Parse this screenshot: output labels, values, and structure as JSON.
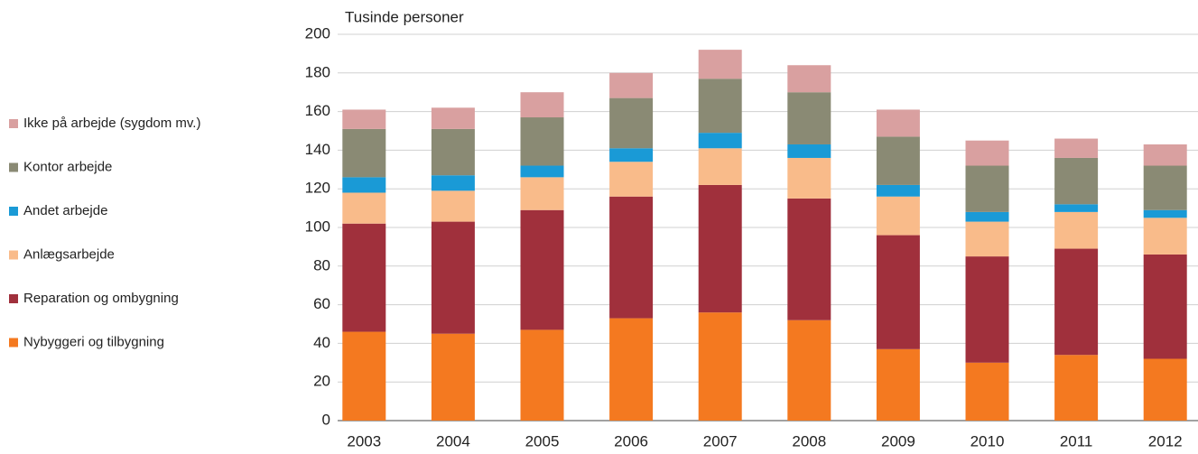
{
  "chart_data": {
    "type": "bar",
    "stacked": true,
    "y_label": "Tusinde personer",
    "categories": [
      "2003",
      "2004",
      "2005",
      "2006",
      "2007",
      "2008",
      "2009",
      "2010",
      "2011",
      "2012"
    ],
    "series": [
      {
        "name": "Nybyggeri og tilbygning",
        "color": "#f47920",
        "values": [
          46,
          45,
          47,
          53,
          56,
          52,
          37,
          30,
          34,
          32
        ]
      },
      {
        "name": "Reparation og ombygning",
        "color": "#a0303c",
        "values": [
          56,
          58,
          62,
          63,
          66,
          63,
          59,
          55,
          55,
          54
        ]
      },
      {
        "name": "Anlægsarbejde",
        "color": "#f9bb8a",
        "values": [
          16,
          16,
          17,
          18,
          19,
          21,
          20,
          18,
          19,
          19
        ]
      },
      {
        "name": "Andet arbejde",
        "color": "#1a9ad6",
        "values": [
          8,
          8,
          6,
          7,
          8,
          7,
          6,
          5,
          4,
          4
        ]
      },
      {
        "name": "Kontor arbejde",
        "color": "#8a8a74",
        "values": [
          25,
          24,
          25,
          26,
          28,
          27,
          25,
          24,
          24,
          23
        ]
      },
      {
        "name": "Ikke på arbejde (sygdom mv.)",
        "color": "#d9a0a0",
        "values": [
          10,
          11,
          13,
          13,
          15,
          14,
          14,
          13,
          10,
          11
        ]
      }
    ],
    "ylim": [
      0,
      200
    ],
    "yticks": [
      0,
      20,
      40,
      60,
      80,
      100,
      120,
      140,
      160,
      180,
      200
    ],
    "grid": true,
    "legend": "left"
  }
}
